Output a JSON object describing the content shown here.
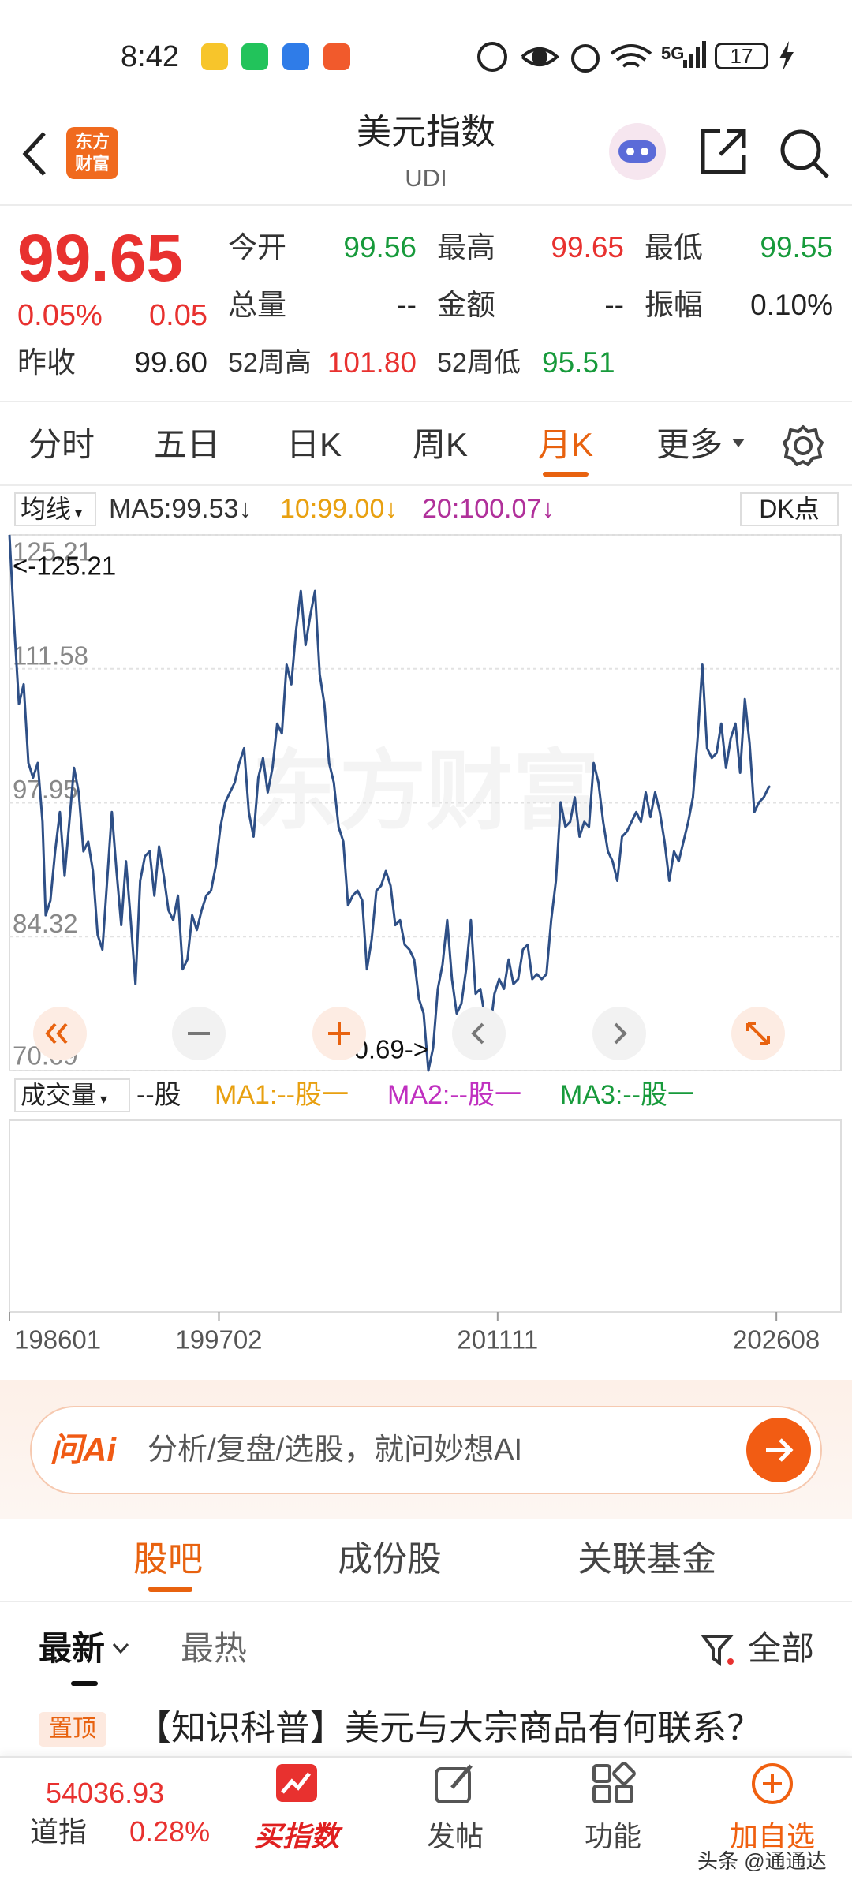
{
  "status_bar": {
    "time": "8:42",
    "network": "5G",
    "battery": "17"
  },
  "header": {
    "logo": [
      "东方",
      "财富"
    ],
    "title": "美元指数",
    "code": "UDI"
  },
  "quote": {
    "price": "99.65",
    "change_pct": "0.05%",
    "change": "0.05",
    "fields": [
      {
        "label": "今开",
        "value": "99.56"
      },
      {
        "label": "最高",
        "value": "99.65"
      },
      {
        "label": "最低",
        "value": "99.55"
      },
      {
        "label": "总量",
        "value": "--"
      },
      {
        "label": "金额",
        "value": "--"
      },
      {
        "label": "振幅",
        "value": "0.10%"
      },
      {
        "label": "昨收",
        "value": "99.60"
      },
      {
        "label": "52周高",
        "value": "101.80"
      },
      {
        "label": "52周低",
        "value": "95.51"
      }
    ]
  },
  "tabs": [
    "分时",
    "五日",
    "日K",
    "周K",
    "月K",
    "更多"
  ],
  "indicators": {
    "selector": "均线",
    "ma5": "MA5:99.53↓",
    "ma10": "10:99.00↓",
    "ma20": "20:100.07↓",
    "dk": "DK点"
  },
  "chart_data": {
    "type": "line",
    "color": "#2e4f86",
    "watermark": "东方财富",
    "max_label": "<-125.21",
    "min_label": "70.69->",
    "x": [
      "198601",
      "198604",
      "198607",
      "198610",
      "198701",
      "198704",
      "198707",
      "198710",
      "198712",
      "198803",
      "198806",
      "198809",
      "198812",
      "198903",
      "198906",
      "198909",
      "198912",
      "199003",
      "199006",
      "199009",
      "199012",
      "199103",
      "199106",
      "199109",
      "199112",
      "199203",
      "199206",
      "199209",
      "199212",
      "199303",
      "199306",
      "199309",
      "199312",
      "199403",
      "199406",
      "199409",
      "199412",
      "199503",
      "199506",
      "199509",
      "199512",
      "199603",
      "199606",
      "199609",
      "199612",
      "199703",
      "199706",
      "199709",
      "199712",
      "199803",
      "199806",
      "199809",
      "199812",
      "199903",
      "199906",
      "199909",
      "199912",
      "200003",
      "200006",
      "200009",
      "200012",
      "200103",
      "200106",
      "200109",
      "200112",
      "200203",
      "200206",
      "200209",
      "200212",
      "200303",
      "200306",
      "200309",
      "200312",
      "200403",
      "200406",
      "200409",
      "200412",
      "200503",
      "200506",
      "200509",
      "200512",
      "200603",
      "200606",
      "200609",
      "200612",
      "200703",
      "200706",
      "200709",
      "200712",
      "200803",
      "200806",
      "200809",
      "200812",
      "200903",
      "200906",
      "200909",
      "200912",
      "201003",
      "201006",
      "201009",
      "201012",
      "201103",
      "201106",
      "201109",
      "201112",
      "201203",
      "201206",
      "201209",
      "201212",
      "201303",
      "201306",
      "201309",
      "201312",
      "201403",
      "201406",
      "201409",
      "201412",
      "201503",
      "201506",
      "201509",
      "201512",
      "201603",
      "201606",
      "201609",
      "201612",
      "201703",
      "201706",
      "201709",
      "201712",
      "201803",
      "201806",
      "201809",
      "201812",
      "201903",
      "201906",
      "201909",
      "201912",
      "202003",
      "202006",
      "202009",
      "202012",
      "202103",
      "202106",
      "202109",
      "202112",
      "202203",
      "202206",
      "202209",
      "202212",
      "202303",
      "202306",
      "202309",
      "202312",
      "202403",
      "202406",
      "202409",
      "202412",
      "202503",
      "202506",
      "202509",
      "202512",
      "202603",
      "202604"
    ],
    "values": [
      125.21,
      116,
      108,
      110,
      102,
      100.5,
      102,
      96,
      86.5,
      88,
      93,
      97,
      90.5,
      96,
      101.5,
      99,
      93,
      94,
      91,
      84.5,
      83,
      90,
      97,
      91,
      85.5,
      92,
      86,
      79.5,
      90,
      92.5,
      93,
      88.5,
      93.5,
      90.5,
      87,
      86,
      88.5,
      81,
      82,
      86.5,
      85,
      87,
      88.5,
      89,
      91.5,
      95.5,
      98,
      99,
      100,
      102,
      103.5,
      97,
      94.5,
      100.5,
      102.5,
      99,
      101.5,
      106,
      105,
      112,
      110,
      115.5,
      119.5,
      114,
      117,
      119.5,
      111,
      108,
      102,
      100,
      95.5,
      94,
      87.5,
      88.5,
      89,
      88,
      81,
      84,
      89,
      89.5,
      91,
      89.5,
      85.5,
      86,
      83.5,
      83,
      82,
      78,
      76.5,
      70.69,
      73,
      79,
      81.5,
      86,
      80,
      76.5,
      77.5,
      81,
      86,
      78.5,
      79,
      76,
      74.5,
      78.5,
      80,
      79,
      82,
      79.5,
      80,
      83,
      83.5,
      80,
      80.5,
      80,
      80.5,
      86,
      90,
      98,
      95.5,
      96,
      98.5,
      94.5,
      96,
      95.5,
      102,
      100,
      96,
      93,
      92,
      90,
      94.5,
      95,
      96,
      97,
      96,
      99,
      96.5,
      99,
      97,
      94,
      90,
      93,
      92,
      94,
      96,
      98.5,
      104.5,
      112,
      103.5,
      102.5,
      103,
      106,
      101.5,
      104.5,
      106,
      101,
      108.5,
      104,
      97,
      98,
      98.5,
      99.5,
      99.65
    ],
    "ylim": [
      70.69,
      125.21
    ],
    "yticks": [
      70.69,
      84.32,
      97.95,
      111.58,
      125.21
    ],
    "grid": true,
    "xlim": [
      "198601",
      "203001"
    ],
    "xticks": [
      "198601",
      "199702",
      "201111",
      "202608"
    ]
  },
  "volume": {
    "selector": "成交量",
    "unit": "--股",
    "ma1": "MA1:--股一",
    "ma2": "MA2:--股一",
    "ma3": "MA3:--股一"
  },
  "ai_bar": {
    "logo": "问Ai",
    "placeholder": "分析/复盘/选股，就问妙想AI"
  },
  "sections": [
    "股吧",
    "成份股",
    "关联基金"
  ],
  "filters": {
    "latest": "最新",
    "hot": "最热",
    "all": "全部"
  },
  "pinned": {
    "tag": "置顶",
    "title": "【知识科普】美元与大宗商品有何联系？"
  },
  "bottom_bar": {
    "index_value": "54036.93",
    "index_name": "道指",
    "index_change": "0.28%",
    "items": [
      "买指数",
      "发帖",
      "功能",
      "加自选"
    ]
  },
  "watermark": "头条 @通通达"
}
